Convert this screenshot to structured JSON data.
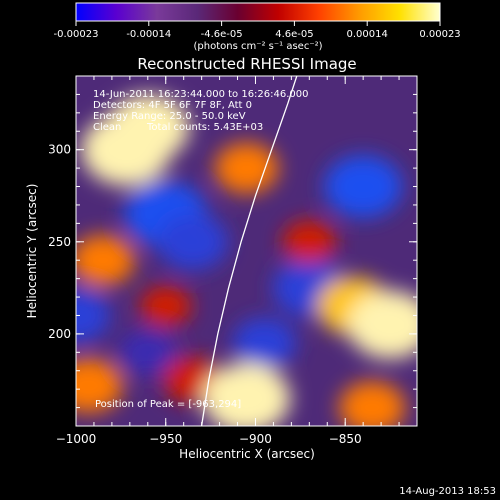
{
  "colorbar": {
    "tick_labels": [
      "-0.00023",
      "-0.00014",
      "-4.6e-05",
      "4.6e-05",
      "0.00014",
      "0.00023"
    ],
    "unit_label": "(photons cm⁻² s⁻¹ asec⁻²)",
    "colors": [
      "#0000ff",
      "#5a00d0",
      "#7a3a9a",
      "#5a2878",
      "#6a0030",
      "#c00000",
      "#ff4000",
      "#ff9a00",
      "#ffe000",
      "#ffffd0"
    ]
  },
  "chart_data": {
    "type": "heatmap",
    "title": "Reconstructed RHESSI Image",
    "xlabel": "Heliocentric X (arcsec)",
    "ylabel": "Heliocentric Y (arcsec)",
    "xlim": [
      -1000,
      -810
    ],
    "ylim": [
      150,
      340
    ],
    "x_ticks": [
      -1000,
      -950,
      -900,
      -850
    ],
    "x_tick_labels": [
      "−1000",
      "−950",
      "−900",
      "−850"
    ],
    "y_ticks": [
      200,
      250,
      300
    ],
    "y_tick_labels": [
      "200",
      "250",
      "300"
    ],
    "value_range": [
      -0.00023,
      0.00023
    ],
    "bright_regions": [
      {
        "x": -972,
        "y": 300,
        "value": 0.00023
      },
      {
        "x": -960,
        "y": 312,
        "value": 0.0002
      },
      {
        "x": -985,
        "y": 240,
        "value": 0.00012
      },
      {
        "x": -993,
        "y": 172,
        "value": 0.00014
      },
      {
        "x": -935,
        "y": 175,
        "value": 0.0001
      },
      {
        "x": -905,
        "y": 165,
        "value": 0.00022
      },
      {
        "x": -845,
        "y": 215,
        "value": 0.00016
      },
      {
        "x": -825,
        "y": 205,
        "value": 0.00021
      },
      {
        "x": -905,
        "y": 290,
        "value": 0.00012
      },
      {
        "x": -870,
        "y": 250,
        "value": 8e-05
      },
      {
        "x": -950,
        "y": 215,
        "value": 7e-05
      },
      {
        "x": -835,
        "y": 160,
        "value": 0.00013
      }
    ],
    "dark_regions": [
      {
        "x": -950,
        "y": 265,
        "value": -0.0002
      },
      {
        "x": -935,
        "y": 250,
        "value": -0.00015
      },
      {
        "x": -1000,
        "y": 210,
        "value": -0.00014
      },
      {
        "x": -870,
        "y": 225,
        "value": -0.00016
      },
      {
        "x": -895,
        "y": 195,
        "value": -0.00012
      },
      {
        "x": -840,
        "y": 280,
        "value": -0.00018
      },
      {
        "x": -960,
        "y": 190,
        "value": -0.0001
      }
    ],
    "limb_curve": [
      [
        -930,
        150
      ],
      [
        -926,
        175
      ],
      [
        -921,
        200
      ],
      [
        -915,
        225
      ],
      [
        -908,
        250
      ],
      [
        -900,
        275
      ],
      [
        -891,
        300
      ],
      [
        -882,
        325
      ],
      [
        -877,
        340
      ]
    ]
  },
  "annotations": {
    "time_range": "14-Jun-2011 16:23:44.000 to 16:26:46.000",
    "detectors": "Detectors: 4F 5F 6F 7F 8F, Att 0",
    "energy": "Energy Range: 25.0 - 50.0 keV",
    "clean_label": "Clean",
    "counts": "Total counts: 5.43E+03",
    "peak": "Position of Peak = [-963,294]"
  },
  "footer": {
    "timestamp": "14-Aug-2013 18:53"
  }
}
